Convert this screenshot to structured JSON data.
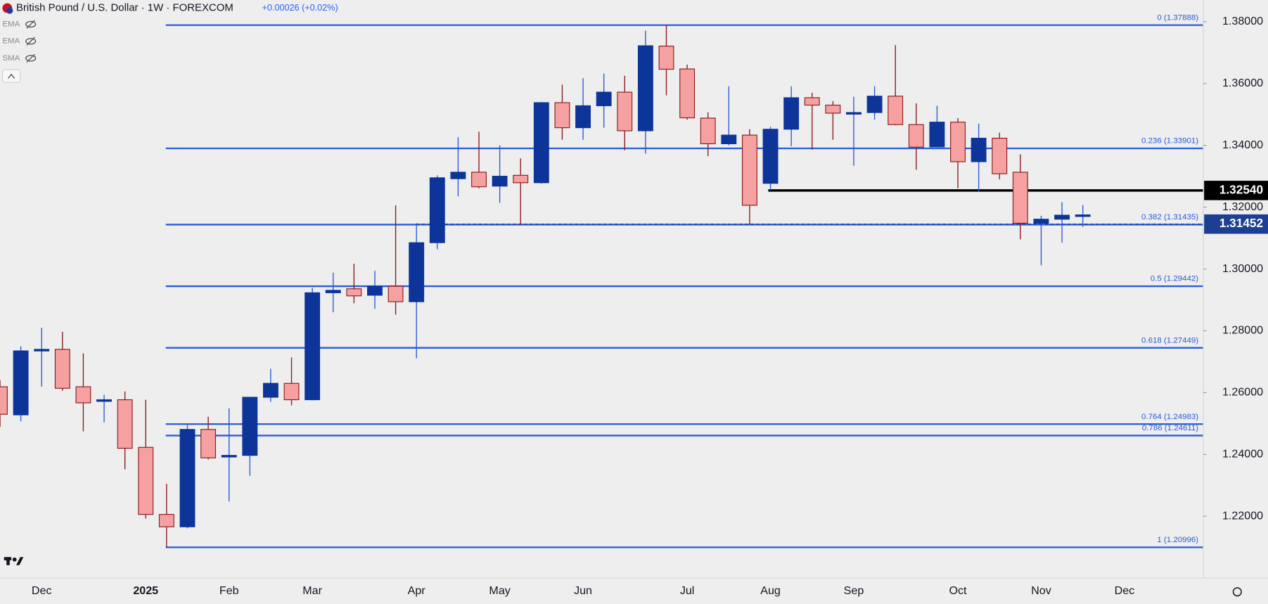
{
  "chart_data": {
    "type": "candlestick",
    "title": "British Pound / U.S. Dollar · 1W · FOREXCOM",
    "change": "+0.00026 (+0.02%)",
    "indicators": [
      "EMA",
      "EMA",
      "SMA"
    ],
    "categories": [
      null,
      null,
      "Dec",
      null,
      null,
      null,
      null,
      "2025",
      null,
      null,
      null,
      "Feb",
      null,
      null,
      null,
      "Mar",
      null,
      null,
      null,
      null,
      "Apr",
      null,
      null,
      null,
      "May",
      null,
      null,
      null,
      "Jun",
      null,
      null,
      null,
      null,
      "Jul",
      null,
      null,
      null,
      "Aug",
      null,
      null,
      null,
      "Sep",
      null,
      null,
      null,
      null,
      "Oct",
      null,
      null,
      null,
      "Nov",
      null,
      null,
      null,
      "Dec"
    ],
    "open": [
      1.2619,
      1.2528,
      1.2735,
      1.274,
      1.2619,
      1.2572,
      1.2577,
      1.2423,
      1.2206,
      1.2166,
      1.2481,
      1.2394,
      1.2397,
      1.2585,
      1.263,
      1.2577,
      1.2923,
      1.2936,
      1.2915,
      1.2944,
      1.2894,
      1.3085,
      1.3292,
      1.3313,
      1.3268,
      1.3303,
      1.3279,
      1.3538,
      1.3457,
      1.3528,
      1.3572,
      1.3447,
      1.3721,
      1.3647,
      1.3488,
      1.3405,
      1.3433,
      1.3277,
      1.3452,
      1.3554,
      1.353,
      1.3503,
      1.3506,
      1.3559,
      1.3467,
      1.3395,
      1.3475,
      1.3347,
      1.3423,
      1.3313,
      1.3148,
      1.3161,
      1.3172,
      null,
      null
    ],
    "high": [
      1.264,
      1.275,
      1.281,
      1.2797,
      1.2727,
      1.2593,
      1.2604,
      1.2577,
      1.2305,
      1.2499,
      1.2522,
      1.2549,
      1.2586,
      1.2677,
      1.2714,
      1.2939,
      1.2988,
      1.3017,
      1.2994,
      1.3206,
      1.3148,
      1.3303,
      1.3426,
      1.3444,
      1.34,
      1.3358,
      1.354,
      1.3596,
      1.3617,
      1.3632,
      1.3625,
      1.3771,
      1.3789,
      1.3661,
      1.3507,
      1.3591,
      1.3452,
      1.346,
      1.3591,
      1.357,
      1.3543,
      1.3557,
      1.3591,
      1.3724,
      1.3536,
      1.3528,
      1.3488,
      1.347,
      1.3441,
      1.3371,
      1.3172,
      1.3216,
      1.3207,
      null,
      null
    ],
    "low": [
      1.2489,
      1.2507,
      1.2619,
      1.2606,
      1.2475,
      1.2504,
      1.2352,
      1.2193,
      1.21,
      1.2161,
      1.2384,
      1.2248,
      1.2331,
      1.257,
      1.2559,
      1.2575,
      1.286,
      1.2889,
      1.2871,
      1.2852,
      1.2711,
      1.3064,
      1.3235,
      1.3261,
      1.3214,
      1.3143,
      1.3276,
      1.3418,
      1.3418,
      1.3457,
      1.3384,
      1.3373,
      1.3562,
      1.3483,
      1.3365,
      1.34,
      1.3143,
      1.3254,
      1.3397,
      1.3386,
      1.3418,
      1.3334,
      1.3483,
      1.3465,
      1.3321,
      1.3394,
      1.3261,
      1.325,
      1.329,
      1.3096,
      1.3012,
      1.3085,
      1.3136,
      null,
      null
    ],
    "close": [
      1.253,
      1.2735,
      1.274,
      1.2614,
      1.2567,
      1.2577,
      1.242,
      1.2206,
      1.2166,
      1.2481,
      1.2389,
      1.2397,
      1.2585,
      1.263,
      1.2577,
      1.2923,
      1.2931,
      1.2913,
      1.2944,
      1.2894,
      1.3085,
      1.3295,
      1.3313,
      1.3266,
      1.33,
      1.3279,
      1.3538,
      1.3457,
      1.3528,
      1.3572,
      1.3447,
      1.3722,
      1.3646,
      1.3489,
      1.3405,
      1.3433,
      1.3206,
      1.3452,
      1.3554,
      1.353,
      1.3504,
      1.3506,
      1.3559,
      1.3467,
      1.3394,
      1.3475,
      1.3347,
      1.3423,
      1.3308,
      1.3148,
      1.3161,
      1.3174,
      1.3175,
      null,
      null
    ],
    "up_color": "#0d3599",
    "down_color": "#f6a1a1",
    "down_edge": "#8a1c1c",
    "ylim": [
      1.2,
      1.387
    ],
    "yticks": [
      {
        "value": 1.38,
        "label": "1.38000"
      },
      {
        "value": 1.36,
        "label": "1.36000"
      },
      {
        "value": 1.34,
        "label": "1.34000"
      },
      {
        "value": 1.32,
        "label": "1.32000"
      },
      {
        "value": 1.3,
        "label": "1.30000"
      },
      {
        "value": 1.28,
        "label": "1.28000"
      },
      {
        "value": 1.26,
        "label": "1.26000"
      },
      {
        "value": 1.24,
        "label": "1.24000"
      },
      {
        "value": 1.22,
        "label": "1.22000"
      }
    ],
    "fib_color": "#2a5bd7",
    "fib_levels": [
      {
        "value": 1.37888,
        "label": "0 (1.37888)"
      },
      {
        "value": 1.33901,
        "label": "0.236 (1.33901)"
      },
      {
        "value": 1.31435,
        "label": "0.382 (1.31435)"
      },
      {
        "value": 1.29442,
        "label": "0.5 (1.29442)"
      },
      {
        "value": 1.27449,
        "label": "0.618 (1.27449)"
      },
      {
        "value": 1.24983,
        "label": "0.764 (1.24983)"
      },
      {
        "value": 1.24611,
        "label": "0.786 (1.24611)"
      },
      {
        "value": 1.20996,
        "label": "1 (1.20996)"
      }
    ],
    "price_lines": [
      {
        "value": 1.3254,
        "label": "1.32540",
        "color": "#000000",
        "dashed": false
      },
      {
        "value": 1.31452,
        "label": "1.31452",
        "color": "#1c3f94",
        "dashed": true
      }
    ]
  }
}
